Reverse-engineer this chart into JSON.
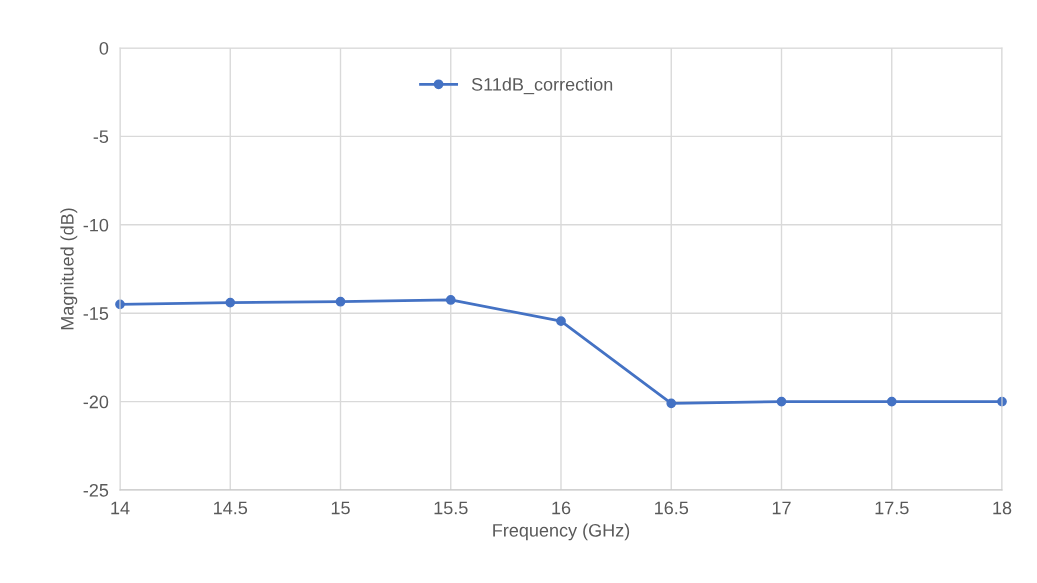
{
  "chart_data": {
    "type": "line",
    "xlabel": "Frequency (GHz)",
    "ylabel": "Magnitued (dB)",
    "x": [
      14,
      14.5,
      15,
      15.5,
      16,
      16.5,
      17,
      17.5,
      18
    ],
    "series": [
      {
        "name": "S11dB_correction",
        "color": "#4472c4",
        "values": [
          -14.5,
          -14.4,
          -14.35,
          -14.25,
          -15.45,
          -20.1,
          -20.0,
          -20.0,
          -20.0
        ]
      }
    ],
    "xlim": [
      14,
      18
    ],
    "xticks": [
      14,
      14.5,
      15,
      15.5,
      16,
      16.5,
      17,
      17.5,
      18
    ],
    "ylim": [
      -25,
      0
    ],
    "yticks": [
      -25,
      -20,
      -15,
      -10,
      -5,
      0
    ],
    "grid": true,
    "legend": "top",
    "marker": "circle",
    "line_style": "solid"
  }
}
